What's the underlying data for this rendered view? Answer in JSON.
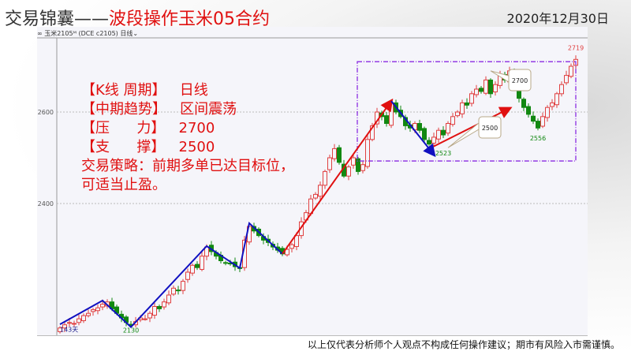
{
  "title": {
    "prefix": "交易锦囊——",
    "main": "波段操作玉米05合约"
  },
  "date": "2020年12月30日",
  "panel_header": "∞ 玉米2105ᴹ (DCE c2105)  日线⌄",
  "note": {
    "lines": [
      "【K线 周期】   日线",
      "【中期趋势】   区间震荡",
      "【压      力】   2700",
      "【支      撑】   2500",
      "交易策略：前期多单已达目标位，",
      "可适当止盈。"
    ]
  },
  "footer": "以上仅代表分析师个人观点不构成任何操作建议；期市有风险入市需谨慎。",
  "chart_data": {
    "type": "candlestick",
    "yticks": [
      2400,
      2600
    ],
    "ylim": [
      2125,
      2745
    ],
    "colors": {
      "up": "#e04040",
      "down": "#118811",
      "up_trend": "#e01010",
      "down_trend": "#1010c0",
      "box": "#8a2be2"
    },
    "closes": [
      2128,
      2135,
      2140,
      2138,
      2148,
      2155,
      2160,
      2168,
      2172,
      2180,
      2185,
      2170,
      2160,
      2150,
      2140,
      2135,
      2142,
      2150,
      2148,
      2160,
      2175,
      2170,
      2185,
      2200,
      2215,
      2210,
      2230,
      2250,
      2265,
      2260,
      2285,
      2305,
      2295,
      2285,
      2275,
      2270,
      2268,
      2262,
      2258,
      2320,
      2350,
      2340,
      2330,
      2320,
      2315,
      2305,
      2298,
      2290,
      2300,
      2310,
      2330,
      2360,
      2380,
      2410,
      2420,
      2440,
      2470,
      2500,
      2520,
      2490,
      2460,
      2480,
      2500,
      2470,
      2485,
      2540,
      2570,
      2600,
      2590,
      2575,
      2620,
      2600,
      2590,
      2570,
      2565,
      2575,
      2560,
      2540,
      2530,
      2545,
      2560,
      2550,
      2575,
      2590,
      2600,
      2620,
      2615,
      2640,
      2650,
      2645,
      2670,
      2640,
      2660,
      2680,
      2670,
      2690,
      2660,
      2630,
      2610,
      2595,
      2580,
      2565,
      2590,
      2610,
      2620,
      2640,
      2660,
      2680,
      2700,
      2715
    ],
    "labels": [
      {
        "text": "2719",
        "idx": 109,
        "price": 2735,
        "color": "#e04040"
      },
      {
        "text": "2556",
        "idx": 101,
        "price": 2538,
        "color": "#118811"
      },
      {
        "text": "2523",
        "idx": 81,
        "price": 2505,
        "color": "#118811"
      },
      {
        "text": "2130",
        "idx": 15,
        "price": 2118,
        "color": "#118811"
      },
      {
        "text": "143天",
        "idx": 0,
        "price": 2120,
        "color": "#1a1a8a"
      }
    ],
    "callouts": [
      {
        "text": "2700",
        "target_idx": 91,
        "target_price": 2690
      },
      {
        "text": "2500",
        "target_idx": 82,
        "target_price": 2522
      }
    ],
    "trend_lines": [
      {
        "dir": "down",
        "points": [
          [
            0,
            2136
          ],
          [
            9,
            2188
          ],
          [
            15,
            2130
          ],
          [
            31,
            2307
          ],
          [
            38,
            2259
          ],
          [
            40,
            2357
          ],
          [
            47,
            2290
          ]
        ]
      },
      {
        "dir": "up",
        "points": [
          [
            47,
            2290
          ],
          [
            70,
            2624
          ]
        ],
        "arrow": true
      },
      {
        "dir": "down",
        "points": [
          [
            70,
            2624
          ],
          [
            79,
            2507
          ]
        ],
        "arrow": true
      },
      {
        "dir": "up",
        "points": [
          [
            79,
            2525
          ],
          [
            95,
            2608
          ]
        ],
        "arrow": true
      }
    ],
    "box": {
      "idx_from": 63,
      "idx_to": 109,
      "price_top": 2710,
      "price_bottom": 2493
    }
  }
}
